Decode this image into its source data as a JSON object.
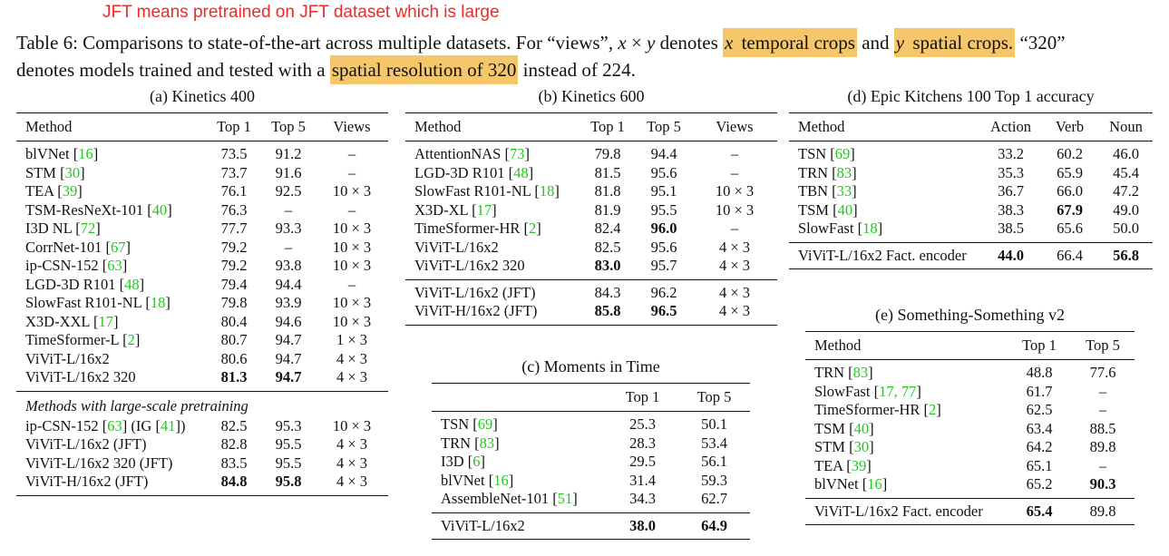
{
  "note": "JFT means pretrained on JFT dataset which is large",
  "caption": {
    "line1": [
      {
        "t": "Table 6: Comparisons to state-of-the-art across multiple datasets. For “views”, ",
        "s": ""
      },
      {
        "t": "x",
        "s": "math"
      },
      {
        "t": " × ",
        "s": ""
      },
      {
        "t": "y",
        "s": "math"
      },
      {
        "t": " denotes ",
        "s": ""
      },
      {
        "t": "x",
        "s": "math hl"
      },
      {
        "t": " temporal crops",
        "s": "hl"
      },
      {
        "t": " and ",
        "s": ""
      },
      {
        "t": "y",
        "s": "math hl"
      },
      {
        "t": " spatial crops.",
        "s": "hl"
      },
      {
        "t": " “320”",
        "s": ""
      }
    ],
    "line2": [
      {
        "t": "denotes models trained and tested with a ",
        "s": ""
      },
      {
        "t": "spatial resolution of 320",
        "s": "hl"
      },
      {
        "t": " instead of 224.",
        "s": ""
      }
    ]
  },
  "tables": {
    "a": {
      "title": "(a) Kinetics 400",
      "headers": [
        "Method",
        "Top 1",
        "Top 5",
        "Views"
      ],
      "groups": [
        {
          "rows": [
            {
              "method": "blVNet ",
              "cite": "16",
              "vals": [
                "73.5",
                "91.2",
                "–"
              ],
              "bold": []
            },
            {
              "method": "STM ",
              "cite": "30",
              "vals": [
                "73.7",
                "91.6",
                "–"
              ],
              "bold": []
            },
            {
              "method": "TEA ",
              "cite": "39",
              "vals": [
                "76.1",
                "92.5",
                "10 × 3"
              ],
              "bold": []
            },
            {
              "method": "TSM-ResNeXt-101 ",
              "cite": "40",
              "vals": [
                "76.3",
                "–",
                "–"
              ],
              "bold": []
            },
            {
              "method": "I3D NL ",
              "cite": "72",
              "vals": [
                "77.7",
                "93.3",
                "10 × 3"
              ],
              "bold": []
            },
            {
              "method": "CorrNet-101 ",
              "cite": "67",
              "vals": [
                "79.2",
                "–",
                "10 × 3"
              ],
              "bold": []
            },
            {
              "method": "ip-CSN-152 ",
              "cite": "63",
              "vals": [
                "79.2",
                "93.8",
                "10 × 3"
              ],
              "bold": []
            },
            {
              "method": "LGD-3D R101 ",
              "cite": "48",
              "vals": [
                "79.4",
                "94.4",
                "–"
              ],
              "bold": []
            },
            {
              "method": "SlowFast R101-NL ",
              "cite": "18",
              "vals": [
                "79.8",
                "93.9",
                "10 × 3"
              ],
              "bold": []
            },
            {
              "method": "X3D-XXL ",
              "cite": "17",
              "vals": [
                "80.4",
                "94.6",
                "10 × 3"
              ],
              "bold": []
            },
            {
              "method": "TimeSformer-L ",
              "cite": "2",
              "vals": [
                "80.7",
                "94.7",
                "1 × 3"
              ],
              "bold": []
            },
            {
              "method": "ViViT-L/16x2",
              "cite": "",
              "vals": [
                "80.6",
                "94.7",
                "4 × 3"
              ],
              "bold": []
            },
            {
              "method": "ViViT-L/16x2 320",
              "cite": "",
              "vals": [
                "81.3",
                "94.7",
                "4 × 3"
              ],
              "bold": [
                0,
                1
              ]
            }
          ]
        },
        {
          "subtitle": "Methods with large-scale pretraining",
          "rows": [
            {
              "method": "ip-CSN-152 ",
              "cite": "63",
              "extra": " (IG ",
              "cite2": "41",
              "tail": ")",
              "vals": [
                "82.5",
                "95.3",
                "10 × 3"
              ],
              "bold": []
            },
            {
              "method": "ViViT-L/16x2 (JFT)",
              "cite": "",
              "vals": [
                "82.8",
                "95.5",
                "4 × 3"
              ],
              "bold": []
            },
            {
              "method": "ViViT-L/16x2 320 (JFT)",
              "cite": "",
              "vals": [
                "83.5",
                "95.5",
                "4 × 3"
              ],
              "bold": []
            },
            {
              "method": "ViViT-H/16x2 (JFT)",
              "cite": "",
              "vals": [
                "84.8",
                "95.8",
                "4 × 3"
              ],
              "bold": [
                0,
                1
              ]
            }
          ]
        }
      ]
    },
    "b": {
      "title": "(b) Kinetics 600",
      "headers": [
        "Method",
        "Top 1",
        "Top 5",
        "Views"
      ],
      "groups": [
        {
          "rows": [
            {
              "method": "AttentionNAS ",
              "cite": "73",
              "vals": [
                "79.8",
                "94.4",
                "–"
              ],
              "bold": []
            },
            {
              "method": "LGD-3D R101 ",
              "cite": "48",
              "vals": [
                "81.5",
                "95.6",
                "–"
              ],
              "bold": []
            },
            {
              "method": "SlowFast R101-NL ",
              "cite": "18",
              "vals": [
                "81.8",
                "95.1",
                "10 × 3"
              ],
              "bold": []
            },
            {
              "method": "X3D-XL ",
              "cite": "17",
              "vals": [
                "81.9",
                "95.5",
                "10 × 3"
              ],
              "bold": []
            },
            {
              "method": "TimeSformer-HR ",
              "cite": "2",
              "vals": [
                "82.4",
                "96.0",
                "–"
              ],
              "bold": [
                1
              ]
            },
            {
              "method": "ViViT-L/16x2",
              "cite": "",
              "vals": [
                "82.5",
                "95.6",
                "4 × 3"
              ],
              "bold": []
            },
            {
              "method": "ViViT-L/16x2 320",
              "cite": "",
              "vals": [
                "83.0",
                "95.7",
                "4 × 3"
              ],
              "bold": [
                0
              ]
            }
          ]
        },
        {
          "rows": [
            {
              "method": "ViViT-L/16x2 (JFT)",
              "cite": "",
              "vals": [
                "84.3",
                "96.2",
                "4 × 3"
              ],
              "bold": []
            },
            {
              "method": "ViViT-H/16x2 (JFT)",
              "cite": "",
              "vals": [
                "85.8",
                "96.5",
                "4 × 3"
              ],
              "bold": [
                0,
                1
              ]
            }
          ]
        }
      ]
    },
    "c": {
      "title": "(c) Moments in Time",
      "headers": [
        "",
        "Top 1",
        "Top 5"
      ],
      "groups": [
        {
          "rows": [
            {
              "method": "TSN ",
              "cite": "69",
              "vals": [
                "25.3",
                "50.1"
              ],
              "bold": []
            },
            {
              "method": "TRN ",
              "cite": "83",
              "vals": [
                "28.3",
                "53.4"
              ],
              "bold": []
            },
            {
              "method": "I3D ",
              "cite": "6",
              "vals": [
                "29.5",
                "56.1"
              ],
              "bold": []
            },
            {
              "method": "blVNet ",
              "cite": "16",
              "vals": [
                "31.4",
                "59.3"
              ],
              "bold": []
            },
            {
              "method": "AssembleNet-101 ",
              "cite": "51",
              "vals": [
                "34.3",
                "62.7"
              ],
              "bold": []
            }
          ]
        },
        {
          "rows": [
            {
              "method": "ViViT-L/16x2",
              "cite": "",
              "vals": [
                "38.0",
                "64.9"
              ],
              "bold": [
                0,
                1
              ]
            }
          ]
        }
      ]
    },
    "d": {
      "title": "(d) Epic Kitchens 100 Top 1 accuracy",
      "headers": [
        "Method",
        "Action",
        "Verb",
        "Noun"
      ],
      "groups": [
        {
          "rows": [
            {
              "method": "TSN ",
              "cite": "69",
              "vals": [
                "33.2",
                "60.2",
                "46.0"
              ],
              "bold": []
            },
            {
              "method": "TRN ",
              "cite": "83",
              "vals": [
                "35.3",
                "65.9",
                "45.4"
              ],
              "bold": []
            },
            {
              "method": "TBN ",
              "cite": "33",
              "vals": [
                "36.7",
                "66.0",
                "47.2"
              ],
              "bold": []
            },
            {
              "method": "TSM ",
              "cite": "40",
              "vals": [
                "38.3",
                "67.9",
                "49.0"
              ],
              "bold": [
                1
              ]
            },
            {
              "method": "SlowFast ",
              "cite": "18",
              "vals": [
                "38.5",
                "65.6",
                "50.0"
              ],
              "bold": []
            }
          ]
        },
        {
          "rows": [
            {
              "method": "ViViT-L/16x2 Fact. encoder",
              "cite": "",
              "vals": [
                "44.0",
                "66.4",
                "56.8"
              ],
              "bold": [
                0,
                2
              ]
            }
          ]
        }
      ]
    },
    "e": {
      "title": "(e) Something-Something v2",
      "headers": [
        "Method",
        "Top 1",
        "Top 5"
      ],
      "groups": [
        {
          "rows": [
            {
              "method": "TRN ",
              "cite": "83",
              "vals": [
                "48.8",
                "77.6"
              ],
              "bold": []
            },
            {
              "method": "SlowFast ",
              "cite": "17, 77",
              "vals": [
                "61.7",
                "–"
              ],
              "bold": []
            },
            {
              "method": "TimeSformer-HR ",
              "cite": "2",
              "vals": [
                "62.5",
                "–"
              ],
              "bold": []
            },
            {
              "method": "TSM ",
              "cite": "40",
              "vals": [
                "63.4",
                "88.5"
              ],
              "bold": []
            },
            {
              "method": "STM ",
              "cite": "30",
              "vals": [
                "64.2",
                "89.8"
              ],
              "bold": []
            },
            {
              "method": "TEA ",
              "cite": "39",
              "vals": [
                "65.1",
                "–"
              ],
              "bold": []
            },
            {
              "method": "blVNet ",
              "cite": "16",
              "vals": [
                "65.2",
                "90.3"
              ],
              "bold": [
                1
              ]
            }
          ]
        },
        {
          "rows": [
            {
              "method": "ViViT-L/16x2 Fact. encoder",
              "cite": "",
              "vals": [
                "65.4",
                "89.8"
              ],
              "bold": [
                0
              ]
            }
          ]
        }
      ]
    }
  }
}
